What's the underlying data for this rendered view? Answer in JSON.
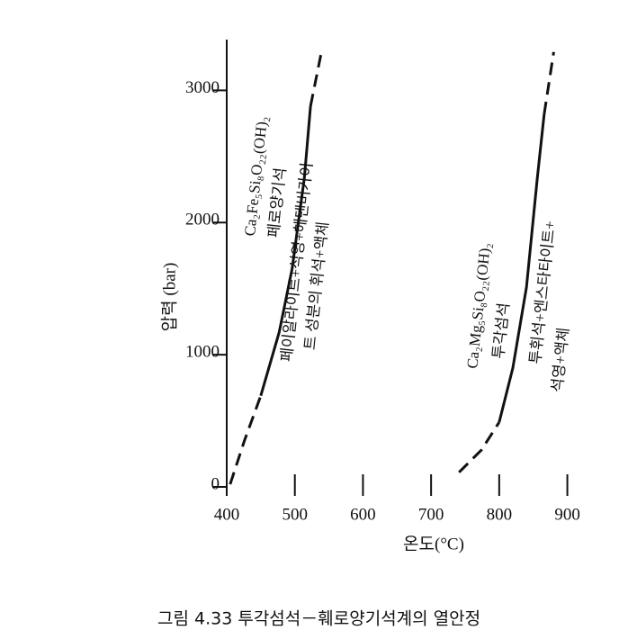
{
  "chart_data": {
    "type": "line",
    "x_label": "온도(°C)",
    "y_label": "압력 (bar)",
    "caption": "그림 4.33  투각섬석－훼로양기석계의 열안정",
    "xlim": [
      400,
      960
    ],
    "ylim": [
      0,
      3350
    ],
    "xticks": [
      400,
      500,
      600,
      700,
      800,
      900
    ],
    "yticks": [
      0,
      1000,
      2000,
      3000
    ],
    "series": [
      {
        "color": "#111111",
        "style": "dashed",
        "x": [
          405,
          426,
          450
        ],
        "values": [
          20,
          350,
          690
        ]
      },
      {
        "color": "#111111",
        "style": "solid",
        "x": [
          450,
          477,
          496,
          514,
          523
        ],
        "values": [
          690,
          1170,
          1650,
          2340,
          2880
        ]
      },
      {
        "color": "#111111",
        "style": "dashed",
        "x": [
          523,
          539
        ],
        "values": [
          2880,
          3290
        ]
      },
      {
        "color": "#111111",
        "style": "dashed",
        "x": [
          741,
          774,
          800
        ],
        "values": [
          110,
          280,
          490
        ]
      },
      {
        "color": "#111111",
        "style": "solid",
        "x": [
          800,
          820,
          840,
          856,
          866
        ],
        "values": [
          490,
          900,
          1510,
          2340,
          2820
        ]
      },
      {
        "color": "#111111",
        "style": "dashed",
        "x": [
          866,
          880
        ],
        "values": [
          2820,
          3290
        ]
      }
    ],
    "annotations": [
      {
        "text": "Ca₂Fe₅Si₈O₂₂(OH)₂",
        "x": 445,
        "y": 2350
      },
      {
        "text": "페로양기석",
        "x": 476,
        "y": 2150
      },
      {
        "text": "페이알라이트+석영+헤덴버가이",
        "x": 505,
        "y": 1700
      },
      {
        "text": "트 성분의 휘석+액체",
        "x": 534,
        "y": 1520
      },
      {
        "text": "Ca₂Mg₅Si₈O₂₂(OH)₂",
        "x": 772,
        "y": 1370
      },
      {
        "text": "투각섬석",
        "x": 805,
        "y": 1180
      },
      {
        "text": "투휘석+엔스타타이트+",
        "x": 866,
        "y": 1470
      },
      {
        "text": "석영+액체",
        "x": 892,
        "y": 960
      }
    ]
  }
}
